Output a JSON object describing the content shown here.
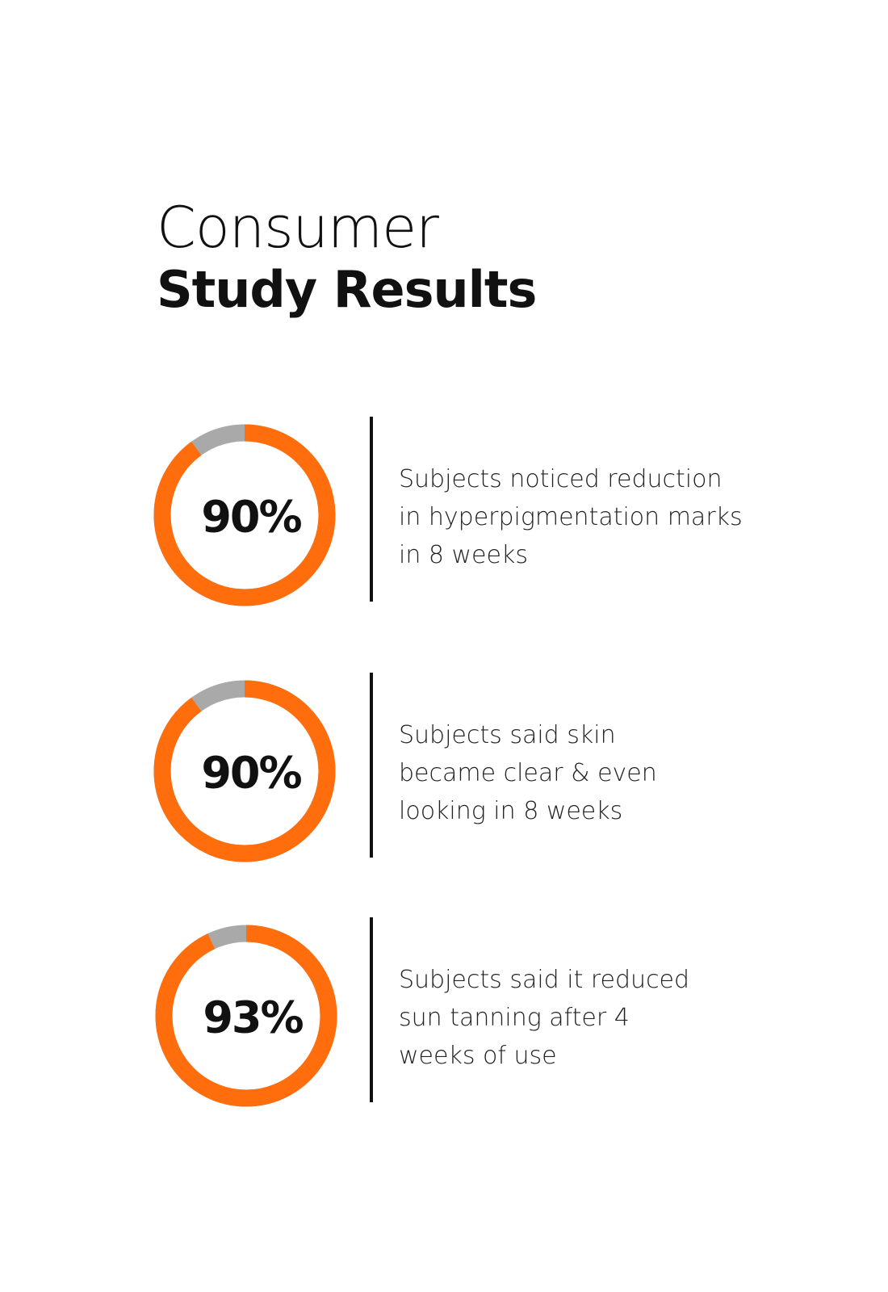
{
  "title": {
    "line1": "Consumer",
    "line2": "Study Results"
  },
  "items": [
    {
      "value": 90,
      "label": "90%",
      "lines": [
        "Subjects noticed reduction",
        "in hyperpigmentation marks",
        "in 8 weeks"
      ]
    },
    {
      "value": 90,
      "label": "90%",
      "lines": [
        "Subjects said skin",
        "became clear & even",
        "looking in 8 weeks"
      ]
    },
    {
      "value": 93,
      "label": "93%",
      "lines": [
        "Subjects said it reduced",
        "sun tanning after 4",
        "weeks of use"
      ]
    }
  ]
}
